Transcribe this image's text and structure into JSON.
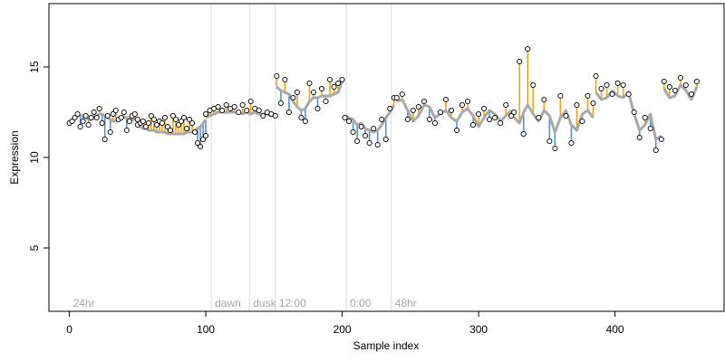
{
  "chart_data": {
    "type": "scatter",
    "title": "",
    "xlabel": "Sample index",
    "ylabel": "Expression",
    "xlim": [
      -15,
      480
    ],
    "ylim": [
      1.5,
      18.5
    ],
    "x_ticks": [
      0,
      100,
      200,
      300,
      400
    ],
    "x_tick_labels": [
      "0",
      "100",
      "200",
      "300",
      "400"
    ],
    "y_ticks": [
      5,
      10,
      15
    ],
    "y_tick_labels": [
      "5",
      "10",
      "15"
    ],
    "grid": false,
    "legend": "none",
    "colors": {
      "fit_line": "#a9a9a9",
      "residual_positive": "#f2a413",
      "residual_negative": "#5a8fd8",
      "point_fill": "#ffffff",
      "point_stroke": "#000000",
      "marker_line": "#dcdcdc",
      "annotation_text": "#a8a8a8"
    },
    "annotations": [
      {
        "x": 0,
        "label": "24hr"
      },
      {
        "x": 104,
        "label": "dawn"
      },
      {
        "x": 132,
        "label": "dusk"
      },
      {
        "x": 151,
        "label": "12:00"
      },
      {
        "x": 203,
        "label": "0:00"
      },
      {
        "x": 236,
        "label": "48hr"
      }
    ],
    "vertical_markers": [
      104,
      132,
      151,
      203,
      236
    ],
    "segments": [
      {
        "x": [
          0,
          2,
          4,
          6,
          8,
          10,
          12,
          14,
          16,
          18,
          20,
          22,
          24,
          26,
          28,
          30,
          32,
          34,
          36,
          38,
          40,
          42,
          44,
          46,
          48,
          50
        ],
        "fitted": [
          12.0,
          12.1,
          12.2,
          12.3,
          12.3,
          12.3,
          12.2,
          12.1,
          12.1,
          12.2,
          12.3,
          12.4,
          12.4,
          12.3,
          12.2,
          12.1,
          12.0,
          12.0,
          12.1,
          12.2,
          12.2,
          12.2,
          12.2,
          12.1,
          12.1,
          12.0
        ],
        "observed": [
          11.9,
          12.0,
          12.2,
          12.4,
          11.7,
          12.0,
          12.3,
          11.8,
          12.2,
          12.5,
          12.2,
          12.7,
          11.9,
          11.0,
          12.3,
          11.4,
          12.4,
          12.6,
          12.1,
          12.2,
          12.5,
          11.5,
          12.0,
          12.3,
          12.4,
          12.1
        ]
      },
      {
        "x": [
          50,
          52,
          54,
          56,
          58,
          60,
          62,
          64,
          66,
          68,
          70,
          72,
          74,
          76,
          78,
          80,
          82,
          84,
          86,
          88,
          90,
          92,
          94,
          96,
          98,
          100
        ],
        "fitted": [
          11.8,
          11.7,
          11.6,
          11.6,
          11.5,
          11.5,
          11.5,
          11.4,
          11.4,
          11.4,
          11.4,
          11.3,
          11.3,
          11.3,
          11.3,
          11.3,
          11.3,
          11.3,
          11.4,
          11.4,
          11.4,
          11.5,
          11.6,
          11.7,
          11.9,
          12.1
        ],
        "observed": [
          11.8,
          11.9,
          12.0,
          11.7,
          11.9,
          12.3,
          12.1,
          11.8,
          12.0,
          11.9,
          12.2,
          11.7,
          11.5,
          12.3,
          12.1,
          11.8,
          12.0,
          12.2,
          11.6,
          12.1,
          11.9,
          11.4,
          10.8,
          10.6,
          11.0,
          11.2
        ]
      },
      {
        "x": [
          100,
          103,
          106,
          109,
          112,
          115,
          118,
          121,
          124,
          127,
          130,
          133,
          136,
          139,
          142,
          145,
          148,
          151
        ],
        "fitted": [
          12.2,
          12.3,
          12.4,
          12.5,
          12.5,
          12.5,
          12.5,
          12.5,
          12.5,
          12.4,
          12.5,
          12.4,
          12.5,
          12.4,
          12.4,
          12.4,
          12.3,
          12.3
        ],
        "observed": [
          12.4,
          12.6,
          12.7,
          12.8,
          12.6,
          12.9,
          12.7,
          12.8,
          12.5,
          12.9,
          12.6,
          13.1,
          12.7,
          12.6,
          12.3,
          12.5,
          12.4,
          12.3
        ]
      },
      {
        "x": [
          152,
          155,
          158,
          161,
          164,
          167,
          170,
          173,
          176,
          179,
          182,
          185,
          188,
          191,
          194,
          197,
          200
        ],
        "fitted": [
          13.9,
          13.7,
          13.6,
          13.5,
          13.1,
          12.8,
          12.6,
          12.7,
          13.1,
          13.3,
          13.3,
          13.4,
          13.4,
          13.4,
          13.5,
          13.6,
          14.2
        ],
        "observed": [
          14.5,
          13.0,
          14.3,
          12.5,
          13.3,
          13.6,
          12.2,
          12.0,
          14.1,
          13.6,
          12.7,
          13.8,
          13.1,
          14.3,
          13.9,
          14.1,
          14.3
        ]
      },
      {
        "x": [
          202,
          205,
          208,
          211,
          214,
          217,
          220,
          223,
          226,
          229,
          232,
          235,
          238
        ],
        "fitted": [
          12.3,
          12.2,
          12.1,
          11.8,
          11.9,
          11.6,
          11.5,
          11.4,
          11.5,
          11.8,
          12.2,
          12.5,
          12.9
        ],
        "observed": [
          12.2,
          12.0,
          11.4,
          10.9,
          11.7,
          11.2,
          10.8,
          11.6,
          10.7,
          12.1,
          11.0,
          12.7,
          13.3
        ]
      },
      {
        "x": [
          240,
          244,
          248,
          252,
          256,
          260,
          264,
          268,
          272,
          276,
          280,
          284,
          288,
          292,
          296,
          300,
          304,
          308,
          312,
          316,
          320,
          324
        ],
        "fitted": [
          13.1,
          13.2,
          12.6,
          12.0,
          12.3,
          12.9,
          12.8,
          12.2,
          12.4,
          12.6,
          12.2,
          12.0,
          12.5,
          12.7,
          12.3,
          11.7,
          12.2,
          12.6,
          12.4,
          12.0,
          12.3,
          12.6
        ],
        "observed": [
          13.3,
          13.5,
          12.1,
          12.6,
          12.8,
          13.1,
          12.1,
          11.9,
          12.5,
          13.2,
          12.6,
          11.5,
          12.9,
          13.1,
          11.8,
          12.4,
          12.7,
          12.1,
          12.2,
          11.9,
          12.9,
          12.3
        ]
      },
      {
        "x": [
          326,
          330,
          333,
          336,
          340,
          344,
          348,
          352,
          356,
          360,
          364,
          368,
          372,
          376,
          380,
          384
        ],
        "fitted": [
          12.2,
          11.9,
          12.5,
          12.9,
          12.4,
          12.0,
          12.6,
          12.3,
          11.4,
          12.2,
          12.6,
          11.8,
          11.5,
          12.4,
          12.6,
          12.2
        ],
        "observed": [
          12.5,
          15.3,
          11.3,
          16.0,
          14.0,
          12.2,
          13.2,
          10.9,
          10.5,
          13.4,
          12.3,
          10.8,
          12.9,
          12.0,
          13.4,
          13.0
        ]
      },
      {
        "x": [
          386,
          390,
          394,
          398,
          402,
          406,
          410,
          414,
          418,
          422,
          426,
          430,
          434
        ],
        "fitted": [
          13.6,
          13.2,
          13.3,
          13.7,
          13.4,
          13.3,
          13.6,
          12.4,
          11.5,
          11.8,
          12.4,
          11.0,
          11.2
        ],
        "observed": [
          14.5,
          13.8,
          14.0,
          13.5,
          14.1,
          14.0,
          13.5,
          12.5,
          11.1,
          12.2,
          11.6,
          10.4,
          11.0
        ]
      },
      {
        "x": [
          436,
          440,
          444,
          448,
          452,
          456,
          460
        ],
        "fitted": [
          13.8,
          13.3,
          13.4,
          14.0,
          13.7,
          13.2,
          13.9
        ],
        "observed": [
          14.2,
          13.9,
          13.7,
          14.4,
          14.0,
          13.5,
          14.2
        ]
      }
    ]
  }
}
